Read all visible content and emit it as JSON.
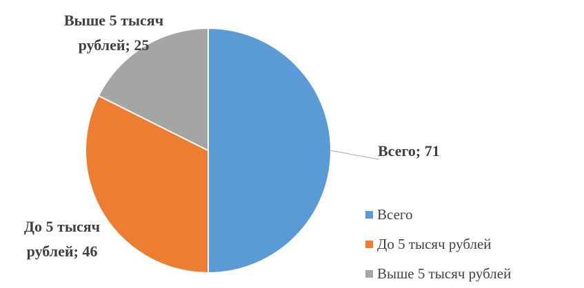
{
  "chart_data": {
    "type": "pie",
    "categories": [
      "Всего",
      "До 5 тысяч рублей",
      "Выше 5 тысяч рублей"
    ],
    "values": [
      71,
      46,
      25
    ],
    "value_labels": [
      "Всего; 71",
      "До 5 тысяч рублей; 46",
      "Выше 5 тысяч рублей; 25"
    ],
    "colors": [
      "#5b9bd5",
      "#ed7d31",
      "#a5a5a5"
    ],
    "legend": "right"
  }
}
